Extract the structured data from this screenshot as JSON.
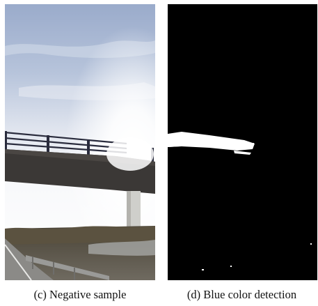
{
  "figure": {
    "panels": [
      {
        "id": "c",
        "caption": "(c) Negative sample",
        "content": "photograph"
      },
      {
        "id": "d",
        "caption": "(d) Blue color detection",
        "content": "binary-mask"
      }
    ],
    "colors": {
      "mask_background": "#000000",
      "mask_foreground": "#ffffff",
      "sky_top": "#9fb0cf",
      "bridge": "#3b3836"
    }
  }
}
